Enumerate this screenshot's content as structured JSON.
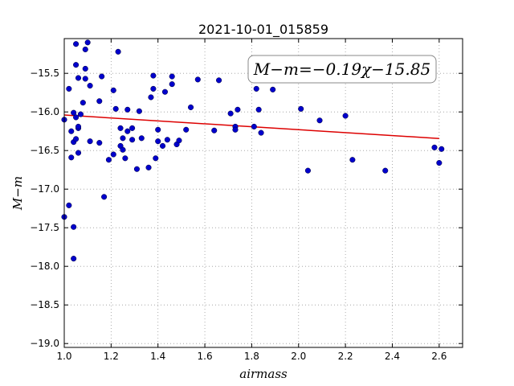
{
  "chart_data": {
    "type": "scatter",
    "title": "2021-10-01_015859",
    "xlabel": "airmass",
    "ylabel": "M−m",
    "annotation": "M−m=−0.19χ−15.85",
    "xlim": [
      1.0,
      2.7
    ],
    "ylim": [
      -19.05,
      -15.05
    ],
    "y_inverted": true,
    "xticks": [
      "1.0",
      "1.2",
      "1.4",
      "1.6",
      "1.8",
      "2.0",
      "2.2",
      "2.4",
      "2.6"
    ],
    "yticks": [
      "−15.5",
      "−16.0",
      "−16.5",
      "−17.0",
      "−17.5",
      "−18.0",
      "−18.5",
      "−19.0"
    ],
    "grid": true,
    "colors": {
      "points": "#0000cc",
      "fit": "#dd0000"
    },
    "fit_line": {
      "slope": -0.19,
      "intercept": -15.85,
      "x": [
        1.0,
        2.6
      ]
    },
    "points": [
      {
        "x": 1.0,
        "y": -17.36
      },
      {
        "x": 1.0,
        "y": -16.1
      },
      {
        "x": 1.02,
        "y": -15.7
      },
      {
        "x": 1.02,
        "y": -17.21
      },
      {
        "x": 1.03,
        "y": -16.25
      },
      {
        "x": 1.03,
        "y": -16.59
      },
      {
        "x": 1.04,
        "y": -16.01
      },
      {
        "x": 1.04,
        "y": -16.39
      },
      {
        "x": 1.04,
        "y": -17.49
      },
      {
        "x": 1.04,
        "y": -17.9
      },
      {
        "x": 1.05,
        "y": -15.12
      },
      {
        "x": 1.05,
        "y": -15.39
      },
      {
        "x": 1.05,
        "y": -16.07
      },
      {
        "x": 1.05,
        "y": -16.35
      },
      {
        "x": 1.06,
        "y": -15.56
      },
      {
        "x": 1.06,
        "y": -16.21
      },
      {
        "x": 1.06,
        "y": -16.19
      },
      {
        "x": 1.06,
        "y": -16.53
      },
      {
        "x": 1.07,
        "y": -16.03
      },
      {
        "x": 1.08,
        "y": -15.88
      },
      {
        "x": 1.09,
        "y": -15.19
      },
      {
        "x": 1.09,
        "y": -15.44
      },
      {
        "x": 1.09,
        "y": -15.57
      },
      {
        "x": 1.1,
        "y": -15.1
      },
      {
        "x": 1.11,
        "y": -15.66
      },
      {
        "x": 1.11,
        "y": -16.38
      },
      {
        "x": 1.15,
        "y": -15.86
      },
      {
        "x": 1.15,
        "y": -16.4
      },
      {
        "x": 1.16,
        "y": -15.54
      },
      {
        "x": 1.17,
        "y": -17.1
      },
      {
        "x": 1.19,
        "y": -16.62
      },
      {
        "x": 1.21,
        "y": -15.72
      },
      {
        "x": 1.21,
        "y": -16.55
      },
      {
        "x": 1.22,
        "y": -15.96
      },
      {
        "x": 1.23,
        "y": -15.22
      },
      {
        "x": 1.24,
        "y": -16.21
      },
      {
        "x": 1.24,
        "y": -16.44
      },
      {
        "x": 1.25,
        "y": -16.34
      },
      {
        "x": 1.25,
        "y": -16.49
      },
      {
        "x": 1.26,
        "y": -16.6
      },
      {
        "x": 1.27,
        "y": -15.97
      },
      {
        "x": 1.27,
        "y": -16.25
      },
      {
        "x": 1.29,
        "y": -16.21
      },
      {
        "x": 1.29,
        "y": -16.36
      },
      {
        "x": 1.31,
        "y": -16.74
      },
      {
        "x": 1.32,
        "y": -15.99
      },
      {
        "x": 1.33,
        "y": -16.34
      },
      {
        "x": 1.36,
        "y": -16.72
      },
      {
        "x": 1.37,
        "y": -15.81
      },
      {
        "x": 1.38,
        "y": -15.7
      },
      {
        "x": 1.38,
        "y": -15.53
      },
      {
        "x": 1.39,
        "y": -16.6
      },
      {
        "x": 1.4,
        "y": -16.23
      },
      {
        "x": 1.4,
        "y": -16.38
      },
      {
        "x": 1.42,
        "y": -16.44
      },
      {
        "x": 1.43,
        "y": -15.74
      },
      {
        "x": 1.44,
        "y": -16.36
      },
      {
        "x": 1.46,
        "y": -15.54
      },
      {
        "x": 1.46,
        "y": -15.64
      },
      {
        "x": 1.48,
        "y": -16.42
      },
      {
        "x": 1.49,
        "y": -16.37
      },
      {
        "x": 1.52,
        "y": -16.23
      },
      {
        "x": 1.54,
        "y": -15.94
      },
      {
        "x": 1.57,
        "y": -15.58
      },
      {
        "x": 1.64,
        "y": -16.24
      },
      {
        "x": 1.66,
        "y": -15.59
      },
      {
        "x": 1.71,
        "y": -16.02
      },
      {
        "x": 1.73,
        "y": -16.19
      },
      {
        "x": 1.73,
        "y": -16.23
      },
      {
        "x": 1.74,
        "y": -15.97
      },
      {
        "x": 1.81,
        "y": -16.19
      },
      {
        "x": 1.82,
        "y": -15.7
      },
      {
        "x": 1.83,
        "y": -15.97
      },
      {
        "x": 1.84,
        "y": -16.27
      },
      {
        "x": 1.89,
        "y": -15.71
      },
      {
        "x": 2.01,
        "y": -15.96
      },
      {
        "x": 2.04,
        "y": -16.76
      },
      {
        "x": 2.09,
        "y": -16.11
      },
      {
        "x": 2.2,
        "y": -16.05
      },
      {
        "x": 2.23,
        "y": -16.62
      },
      {
        "x": 2.37,
        "y": -16.76
      },
      {
        "x": 2.58,
        "y": -16.46
      },
      {
        "x": 2.6,
        "y": -16.66
      },
      {
        "x": 2.61,
        "y": -16.48
      }
    ]
  }
}
